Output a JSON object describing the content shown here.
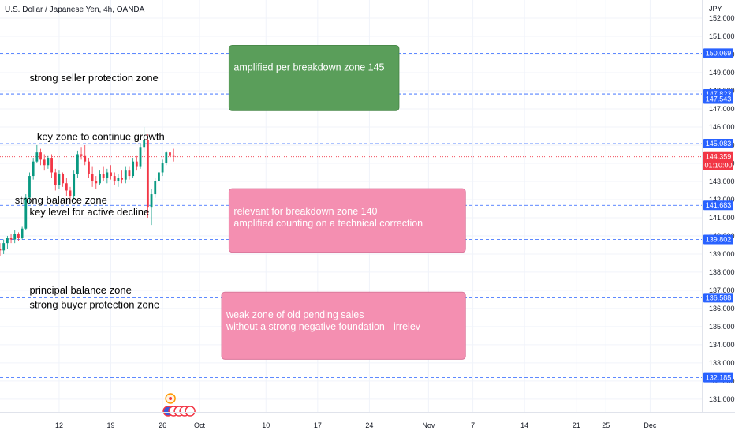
{
  "chart_data": {
    "type": "candlestick",
    "title": "U.S. Dollar / Japanese Yen, 4h, OANDA",
    "yunit": "JPY",
    "ylim": [
      130.3,
      153.0
    ],
    "xlim": [
      "2023-09-04",
      "2023-12-08"
    ],
    "y_ticks": [
      131,
      132,
      133,
      134,
      135,
      136,
      137,
      138,
      139,
      140,
      141,
      142,
      143,
      144,
      145,
      146,
      147,
      148,
      149,
      150,
      151,
      152
    ],
    "y_tick_labels": [
      "131.000",
      "132.000",
      "133.000",
      "134.000",
      "135.000",
      "136.000",
      "137.000",
      "138.000",
      "139.000",
      "140.000",
      "141.000",
      "142.000",
      "143.000",
      "144.000",
      "145.000",
      "146.000",
      "147.000",
      "148.000",
      "149.000",
      "150.000",
      "151.000",
      "152.000"
    ],
    "x_ticks": [
      {
        "date": "2023-09-12",
        "label": "12"
      },
      {
        "date": "2023-09-19",
        "label": "19"
      },
      {
        "date": "2023-09-26",
        "label": "26"
      },
      {
        "date": "2023-10-01",
        "label": "Oct"
      },
      {
        "date": "2023-10-10",
        "label": "10"
      },
      {
        "date": "2023-10-17",
        "label": "17"
      },
      {
        "date": "2023-10-24",
        "label": "24"
      },
      {
        "date": "2023-11-01",
        "label": "Nov"
      },
      {
        "date": "2023-11-07",
        "label": "7"
      },
      {
        "date": "2023-11-14",
        "label": "14"
      },
      {
        "date": "2023-11-21",
        "label": "21"
      },
      {
        "date": "2023-11-25",
        "label": "25"
      },
      {
        "date": "2023-12-01",
        "label": "Dec"
      }
    ],
    "levels": [
      {
        "value": 150.069,
        "label": "150.069"
      },
      {
        "value": 147.823,
        "label": "147.823"
      },
      {
        "value": 147.543,
        "label": "147.543"
      },
      {
        "value": 145.083,
        "label": "145.083"
      },
      {
        "value": 141.683,
        "label": "141.683"
      },
      {
        "value": 139.802,
        "label": "139.802"
      },
      {
        "value": 136.588,
        "label": "136.588"
      },
      {
        "value": 132.185,
        "label": "132.185"
      }
    ],
    "current_price": {
      "value": 144.359,
      "label": "144.359",
      "countdown": "01:10:00"
    },
    "zone_labels": [
      {
        "text": "strong seller protection zone",
        "y": 148.7,
        "x_date": "2023-09-08"
      },
      {
        "text": "key zone to continue growth",
        "y": 145.45,
        "x_date": "2023-09-09"
      },
      {
        "text": "strong balance zone",
        "y": 141.95,
        "x_date": "2023-09-06"
      },
      {
        "text": "key level for active decline",
        "y": 141.3,
        "x_date": "2023-09-08"
      },
      {
        "text": "principal balance zone",
        "y": 137.0,
        "x_date": "2023-09-08"
      },
      {
        "text": "strong buyer protection zone",
        "y": 136.2,
        "x_date": "2023-09-08"
      }
    ],
    "annotation_boxes": [
      {
        "lines": [
          "amplified per breakdown zone 145"
        ],
        "color": "#5a9e5a",
        "x0": "2023-10-05",
        "x1": "2023-10-28",
        "y0": 150.5,
        "y1": 146.9
      },
      {
        "lines": [
          "relevant for breakdown zone 140",
          "amplified counting on a technical correction"
        ],
        "color": "#f48fb1",
        "x0": "2023-10-05",
        "x1": "2023-11-06",
        "y0": 142.6,
        "y1": 139.1
      },
      {
        "lines": [
          "weak  zone of old pending sales",
          "without a strong negative foundation - irrelev"
        ],
        "color": "#f48fb1",
        "x0": "2023-10-04",
        "x1": "2023-11-06",
        "y0": 136.9,
        "y1": 133.2
      }
    ],
    "series": [
      {
        "candles": [
          {
            "t": "2023-09-04T00:00",
            "o": 139.3,
            "h": 139.6,
            "l": 138.9,
            "c": 139.2
          },
          {
            "t": "2023-09-04T12:00",
            "o": 139.2,
            "h": 139.8,
            "l": 139.0,
            "c": 139.6
          },
          {
            "t": "2023-09-05T00:00",
            "o": 139.6,
            "h": 140.0,
            "l": 139.3,
            "c": 139.9
          },
          {
            "t": "2023-09-05T12:00",
            "o": 139.9,
            "h": 140.1,
            "l": 139.6,
            "c": 139.8
          },
          {
            "t": "2023-09-06T00:00",
            "o": 139.8,
            "h": 140.3,
            "l": 139.6,
            "c": 140.1
          },
          {
            "t": "2023-09-06T12:00",
            "o": 140.1,
            "h": 140.2,
            "l": 139.7,
            "c": 139.9
          },
          {
            "t": "2023-09-07T00:00",
            "o": 139.9,
            "h": 140.5,
            "l": 139.8,
            "c": 140.4
          },
          {
            "t": "2023-09-07T12:00",
            "o": 140.4,
            "h": 142.3,
            "l": 140.3,
            "c": 142.1
          },
          {
            "t": "2023-09-08T00:00",
            "o": 142.1,
            "h": 143.5,
            "l": 141.8,
            "c": 143.3
          },
          {
            "t": "2023-09-08T12:00",
            "o": 143.3,
            "h": 144.3,
            "l": 143.1,
            "c": 144.1
          },
          {
            "t": "2023-09-09T00:00",
            "o": 144.1,
            "h": 145.0,
            "l": 144.0,
            "c": 144.6
          },
          {
            "t": "2023-09-09T12:00",
            "o": 144.6,
            "h": 144.8,
            "l": 143.9,
            "c": 144.2
          },
          {
            "t": "2023-09-10T00:00",
            "o": 144.2,
            "h": 144.5,
            "l": 143.6,
            "c": 143.9
          },
          {
            "t": "2023-09-10T12:00",
            "o": 143.9,
            "h": 144.4,
            "l": 143.7,
            "c": 144.3
          },
          {
            "t": "2023-09-11T00:00",
            "o": 144.3,
            "h": 144.5,
            "l": 143.2,
            "c": 143.5
          },
          {
            "t": "2023-09-11T12:00",
            "o": 143.5,
            "h": 143.7,
            "l": 142.5,
            "c": 142.8
          },
          {
            "t": "2023-09-12T00:00",
            "o": 142.8,
            "h": 143.6,
            "l": 142.6,
            "c": 143.4
          },
          {
            "t": "2023-09-12T12:00",
            "o": 143.4,
            "h": 143.5,
            "l": 142.7,
            "c": 142.9
          },
          {
            "t": "2023-09-13T00:00",
            "o": 142.9,
            "h": 143.2,
            "l": 142.2,
            "c": 142.5
          },
          {
            "t": "2023-09-13T12:00",
            "o": 142.5,
            "h": 142.7,
            "l": 141.9,
            "c": 142.2
          },
          {
            "t": "2023-09-14T00:00",
            "o": 142.2,
            "h": 143.6,
            "l": 142.0,
            "c": 143.4
          },
          {
            "t": "2023-09-14T12:00",
            "o": 143.4,
            "h": 144.7,
            "l": 143.2,
            "c": 144.5
          },
          {
            "t": "2023-09-15T00:00",
            "o": 144.5,
            "h": 144.9,
            "l": 144.2,
            "c": 144.4
          },
          {
            "t": "2023-09-15T12:00",
            "o": 144.4,
            "h": 145.0,
            "l": 143.9,
            "c": 144.1
          },
          {
            "t": "2023-09-16T00:00",
            "o": 144.1,
            "h": 144.3,
            "l": 143.2,
            "c": 143.4
          },
          {
            "t": "2023-09-16T12:00",
            "o": 143.4,
            "h": 143.8,
            "l": 142.7,
            "c": 143.0
          },
          {
            "t": "2023-09-17T00:00",
            "o": 143.0,
            "h": 143.3,
            "l": 142.6,
            "c": 142.9
          },
          {
            "t": "2023-09-17T12:00",
            "o": 142.9,
            "h": 143.6,
            "l": 142.8,
            "c": 143.4
          },
          {
            "t": "2023-09-18T00:00",
            "o": 143.4,
            "h": 143.8,
            "l": 143.0,
            "c": 143.2
          },
          {
            "t": "2023-09-18T12:00",
            "o": 143.2,
            "h": 143.7,
            "l": 142.9,
            "c": 143.5
          },
          {
            "t": "2023-09-19T00:00",
            "o": 143.5,
            "h": 143.9,
            "l": 143.1,
            "c": 143.3
          },
          {
            "t": "2023-09-19T12:00",
            "o": 143.3,
            "h": 143.5,
            "l": 142.8,
            "c": 143.0
          },
          {
            "t": "2023-09-20T00:00",
            "o": 143.0,
            "h": 143.4,
            "l": 142.7,
            "c": 143.2
          },
          {
            "t": "2023-09-20T12:00",
            "o": 143.2,
            "h": 143.6,
            "l": 142.9,
            "c": 143.1
          },
          {
            "t": "2023-09-21T00:00",
            "o": 143.1,
            "h": 143.8,
            "l": 142.9,
            "c": 143.6
          },
          {
            "t": "2023-09-21T12:00",
            "o": 143.6,
            "h": 143.8,
            "l": 143.1,
            "c": 143.3
          },
          {
            "t": "2023-09-22T00:00",
            "o": 143.3,
            "h": 144.3,
            "l": 143.2,
            "c": 144.1
          },
          {
            "t": "2023-09-22T12:00",
            "o": 144.1,
            "h": 144.4,
            "l": 143.6,
            "c": 143.8
          },
          {
            "t": "2023-09-23T00:00",
            "o": 143.8,
            "h": 145.1,
            "l": 143.7,
            "c": 144.9
          },
          {
            "t": "2023-09-23T12:00",
            "o": 144.9,
            "h": 146.0,
            "l": 144.6,
            "c": 145.3
          },
          {
            "t": "2023-09-24T00:00",
            "o": 145.3,
            "h": 145.6,
            "l": 141.0,
            "c": 141.6
          },
          {
            "t": "2023-09-24T12:00",
            "o": 141.6,
            "h": 142.6,
            "l": 140.6,
            "c": 142.3
          },
          {
            "t": "2023-09-25T00:00",
            "o": 142.3,
            "h": 143.2,
            "l": 142.1,
            "c": 143.0
          },
          {
            "t": "2023-09-25T12:00",
            "o": 143.0,
            "h": 143.6,
            "l": 142.8,
            "c": 143.5
          },
          {
            "t": "2023-09-26T00:00",
            "o": 143.5,
            "h": 144.2,
            "l": 143.3,
            "c": 144.0
          },
          {
            "t": "2023-09-26T12:00",
            "o": 144.0,
            "h": 144.7,
            "l": 143.9,
            "c": 144.6
          },
          {
            "t": "2023-09-27T00:00",
            "o": 144.6,
            "h": 144.9,
            "l": 144.2,
            "c": 144.4
          },
          {
            "t": "2023-09-27T12:00",
            "o": 144.4,
            "h": 144.8,
            "l": 144.1,
            "c": 144.36
          }
        ]
      }
    ]
  }
}
